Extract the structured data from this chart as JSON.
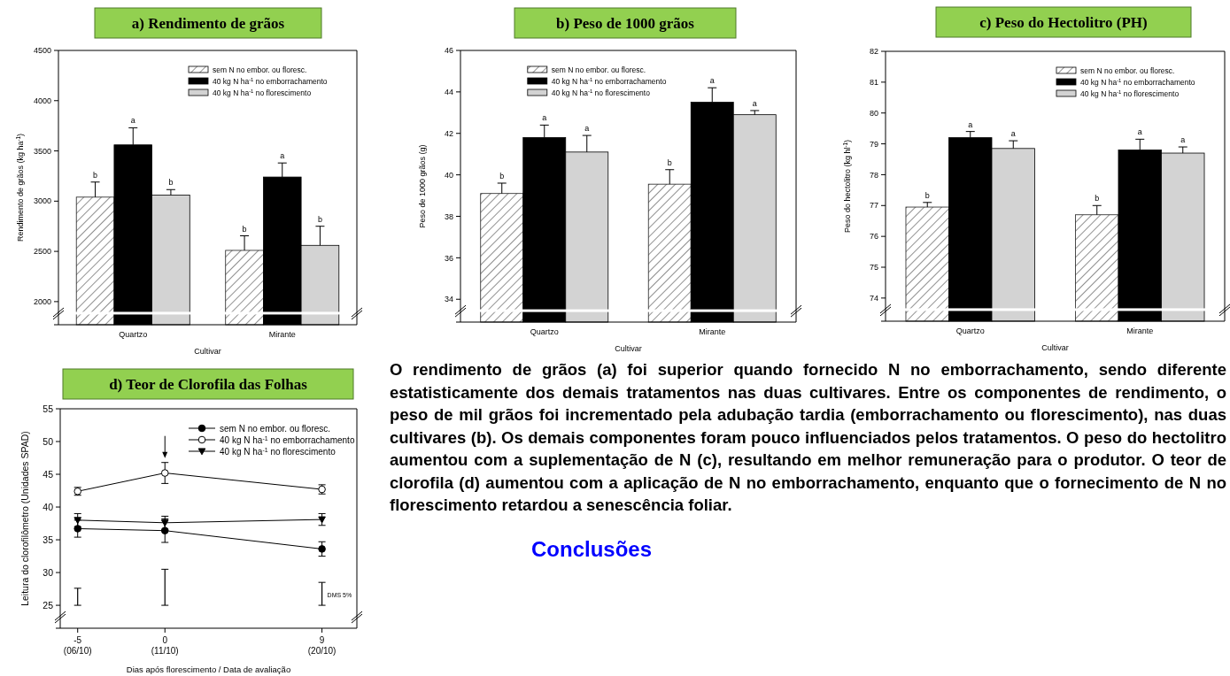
{
  "chart_data": [
    {
      "type": "bar",
      "title": "a) Rendimento de grãos",
      "xlabel": "Cultivar",
      "ylabel": "Rendimento de grãos (kg ha$^{-1}$)",
      "categories": [
        "Quartzo",
        "Mirante"
      ],
      "ylim": [
        1770,
        4500
      ],
      "yticks": [
        {
          "value": 1770,
          "label": null
        },
        2000,
        2500,
        3000,
        3500,
        4000,
        4500
      ],
      "legend": "top right",
      "series": [
        {
          "name": "sem N no embor. ou floresc.",
          "color": "#202020",
          "values": [
            3040,
            2510
          ],
          "errors": [
            150,
            145
          ],
          "value_labels": [
            "b",
            "b"
          ]
        },
        {
          "name": "40 kg N ha$^{-1}$ no emborrachamento",
          "color": "#000000",
          "values": [
            3560,
            3240
          ],
          "errors": [
            170,
            140
          ],
          "value_labels": [
            "a",
            "a"
          ]
        },
        {
          "name": "40 kg N ha$^{-1}$ no florescimento",
          "color": "#d3d3d3",
          "values": [
            3060,
            2560
          ],
          "errors": [
            55,
            190
          ],
          "value_labels": [
            "b",
            "b"
          ]
        }
      ]
    },
    {
      "type": "bar",
      "title": "b) Peso de 1000 grãos",
      "xlabel": "Cultivar",
      "ylabel": "Peso de 1000 grãos (g)",
      "categories": [
        "Quartzo",
        "Mirante"
      ],
      "ylim": [
        32.9,
        46
      ],
      "yticks": [
        {
          "value": 32.9,
          "label": null
        },
        34,
        36,
        38,
        40,
        42,
        44,
        46
      ],
      "legend": "top left",
      "series": [
        {
          "name": "sem N no embor. ou floresc.",
          "color": "#202020",
          "values": [
            39.1,
            39.55
          ],
          "errors": [
            0.5,
            0.7
          ],
          "value_labels": [
            "b",
            "b"
          ]
        },
        {
          "name": "40 kg N ha$^{-1}$ no emborrachamento",
          "color": "#000000",
          "values": [
            41.8,
            43.5
          ],
          "errors": [
            0.6,
            0.7
          ],
          "value_labels": [
            "a",
            "a"
          ]
        },
        {
          "name": "40 kg N ha$^{-1}$ no florescimento",
          "color": "#d3d3d3",
          "values": [
            41.1,
            42.9
          ],
          "errors": [
            0.8,
            0.2
          ],
          "value_labels": [
            "a",
            "a"
          ]
        }
      ]
    },
    {
      "type": "bar",
      "title": "c) Peso do Hectolitro (PH)",
      "xlabel": "Cultivar",
      "ylabel": "Peso do hectolitro (kg hl$^{-1}$)",
      "categories": [
        "Quartzo",
        "Mirante"
      ],
      "ylim": [
        73.25,
        82
      ],
      "yticks": [
        {
          "value": 73.25,
          "label": null
        },
        74,
        75,
        76,
        77,
        78,
        79,
        80,
        81,
        82
      ],
      "legend": "top right",
      "series": [
        {
          "name": "sem N no embor. ou floresc.",
          "color": "#202020",
          "values": [
            76.95,
            76.7
          ],
          "errors": [
            0.15,
            0.3
          ],
          "value_labels": [
            "b",
            "b"
          ]
        },
        {
          "name": "40 kg N ha$^{-1}$ no emborrachamento",
          "color": "#000000",
          "values": [
            79.2,
            78.8
          ],
          "errors": [
            0.2,
            0.35
          ],
          "value_labels": [
            "a",
            "a"
          ]
        },
        {
          "name": "40 kg N ha$^{-1}$ no florescimento",
          "color": "#d3d3d3",
          "values": [
            78.85,
            78.7
          ],
          "errors": [
            0.25,
            0.2
          ],
          "value_labels": [
            "a",
            "a"
          ]
        }
      ]
    },
    {
      "type": "line",
      "title": "d) Teor de Clorofila das Folhas",
      "xlabel": "Dias após florescimento / Data de avaliação",
      "ylabel": "Leitura do clorofilômetro (Unidades SPAD)",
      "x": [
        -5,
        0,
        9
      ],
      "xlim": [
        -6,
        11
      ],
      "xticks": [
        -5,
        0,
        9
      ],
      "ylim": [
        21.5,
        55
      ],
      "yticks": [
        {
          "value": 21.5,
          "label": null
        },
        25,
        30,
        35,
        40,
        45,
        50,
        55
      ],
      "legend": "top right",
      "annotations": [
        "(06/10)",
        "(11/10)",
        "(20/10)",
        {
          "text": "DMS 5%",
          "x": 9,
          "y": 26.7
        }
      ],
      "series": [
        {
          "name": "sem N no embor. ou floresc.",
          "color": "#000000",
          "marker": "circle",
          "values": [
            36.7,
            36.4,
            33.6
          ],
          "errors": [
            1.3,
            1.8,
            1.1
          ]
        },
        {
          "name": "40 kg N ha$^{-1}$ no emborrachamento",
          "color": "#ffffff",
          "marker": "circle",
          "values": [
            42.4,
            45.2,
            42.7
          ],
          "errors": [
            0.6,
            1.6,
            0.7
          ]
        },
        {
          "name": "40 kg N ha$^{-1}$ no florescimento",
          "color": "#000000",
          "marker": "triangle",
          "values": [
            38.0,
            37.6,
            38.1
          ],
          "errors": [
            1.0,
            1.0,
            0.9
          ]
        },
        {
          "type": "bar",
          "color": "#000000",
          "base": [
            25,
            25,
            25
          ],
          "values": [
            2.6,
            5.5,
            3.5
          ]
        }
      ]
    },
    {
      "type": "other",
      "annotations": [
        "O rendimento de grãos (a) foi superior quando fornecido N no emborrachamento, sendo diferente estatisticamente dos demais tratamentos nas duas cultivares. Entre os componentes de rendimento, o peso de mil grãos foi incrementado pela adubação tardia (emborrachamento ou florescimento), nas duas cultivares (b). Os demais componentes foram pouco influenciados pelos tratamentos. O peso do hectolitro aumentou com a suplementação de N (c), resultando em melhor remuneração para o produtor. O teor de clorofila (d) aumentou com a aplicação de N no emborrachamento, enquanto que o fornecimento de N no florescimento retardou a senescência foliar.",
        "Conclusões"
      ]
    }
  ]
}
